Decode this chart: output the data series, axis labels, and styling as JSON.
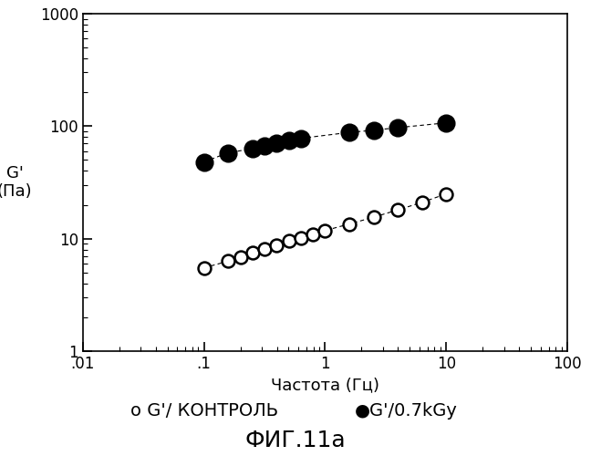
{
  "title": "ФИГ.11а",
  "xlabel": "Частота (Гц)",
  "ylabel": "G'\n(Па)",
  "xlim": [
    0.01,
    100
  ],
  "ylim": [
    1,
    1000
  ],
  "background_color": "#ffffff",
  "control_x": [
    0.1,
    0.158,
    0.2,
    0.251,
    0.316,
    0.398,
    0.501,
    0.631,
    0.794,
    1.0,
    1.585,
    2.512,
    3.981,
    6.31,
    10.0
  ],
  "control_y": [
    5.5,
    6.3,
    6.9,
    7.5,
    8.1,
    8.8,
    9.5,
    10.2,
    11.0,
    11.8,
    13.5,
    15.5,
    18.0,
    21.0,
    25.0
  ],
  "irrad_x": [
    0.1,
    0.158,
    0.251,
    0.316,
    0.398,
    0.501,
    0.631,
    1.585,
    2.512,
    3.981,
    10.0
  ],
  "irrad_y": [
    48,
    58,
    63,
    67,
    71,
    75,
    78,
    88,
    92,
    97,
    107
  ],
  "title_fontsize": 18,
  "label_fontsize": 13,
  "tick_fontsize": 12,
  "legend_fontsize": 14
}
